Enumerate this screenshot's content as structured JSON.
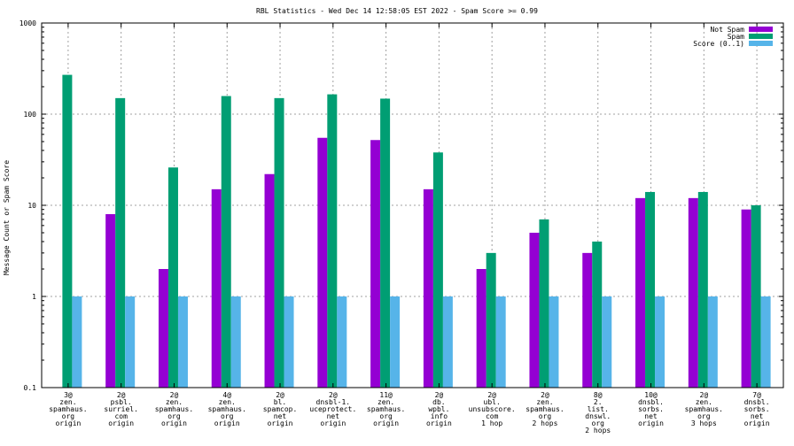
{
  "chart_data": {
    "type": "bar",
    "title": "RBL Statistics - Wed Dec 14 12:58:05 EST 2022 - Spam Score >= 0.99",
    "ylabel": "Message Count or Spam Score",
    "xlabel": "",
    "yscale": "log",
    "ylim": [
      0.1,
      1000
    ],
    "yticks": [
      "0.1",
      "1",
      "10",
      "100",
      "1000"
    ],
    "grid": true,
    "legend_position": "top-right",
    "categories": [
      [
        "3@",
        "zen.",
        "spamhaus.",
        "org",
        "origin"
      ],
      [
        "2@",
        "psbl.",
        "surriel.",
        "com",
        "origin"
      ],
      [
        "2@",
        "zen.",
        "spamhaus.",
        "org",
        "origin"
      ],
      [
        "4@",
        "zen.",
        "spamhaus.",
        "org",
        "origin"
      ],
      [
        "2@",
        "bl.",
        "spamcop.",
        "net",
        "origin"
      ],
      [
        "2@",
        "dnsbl-1.",
        "uceprotect.",
        "net",
        "origin"
      ],
      [
        "11@",
        "zen.",
        "spamhaus.",
        "org",
        "origin"
      ],
      [
        "2@",
        "db.",
        "wpbl.",
        "info",
        "origin"
      ],
      [
        "2@",
        "ubl.",
        "unsubscore.",
        "com",
        "1 hop"
      ],
      [
        "2@",
        "zen.",
        "spamhaus.",
        "org",
        "2 hops"
      ],
      [
        "8@",
        "2.",
        "list.",
        "dnswl.",
        "org",
        "2 hops"
      ],
      [
        "10@",
        "dnsbl.",
        "sorbs.",
        "net",
        "origin"
      ],
      [
        "2@",
        "zen.",
        "spamhaus.",
        "org",
        "3 hops"
      ],
      [
        "7@",
        "dnsbl.",
        "sorbs.",
        "net",
        "origin"
      ]
    ],
    "series": [
      {
        "name": "Not Spam",
        "color": "#9400d3",
        "values": [
          0,
          8,
          2,
          15,
          22,
          55,
          52,
          15,
          2,
          5,
          3,
          12,
          12,
          9
        ]
      },
      {
        "name": "Spam",
        "color": "#009e73",
        "values": [
          270,
          150,
          26,
          158,
          150,
          165,
          148,
          38,
          3,
          7,
          4,
          14,
          14,
          10
        ]
      },
      {
        "name": "Score (0..1)",
        "color": "#56b4e9",
        "values": [
          1,
          1,
          1,
          1,
          1,
          1,
          1,
          1,
          1,
          1,
          1,
          1,
          1,
          1
        ]
      }
    ]
  }
}
